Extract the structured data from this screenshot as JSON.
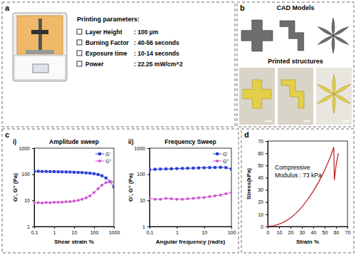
{
  "figure": {
    "panel_labels": [
      "a",
      "b",
      "c",
      "d"
    ],
    "printing": {
      "title": "Printing parameters:",
      "items": [
        {
          "name": "Layer Height",
          "value": ": 100 µm"
        },
        {
          "name": "Burning Factor",
          "value": ": 40-56 seconds"
        },
        {
          "name": "Exposure time",
          "value": ": 10-14 seconds"
        },
        {
          "name": "Power",
          "value": ": 22.25 mW/cm^2"
        }
      ]
    },
    "cad_title": "CAD Models",
    "printed_title": "Printed structures",
    "subpanels": [
      "i)",
      "ii)"
    ]
  },
  "chart_data": [
    {
      "type": "line",
      "title": "Amplitude sweep",
      "x_label": "Shear strain %",
      "y_label": "G', G'' (Pa)",
      "log": true,
      "legend": "upper right",
      "x": [
        0.1,
        0.16,
        0.25,
        0.4,
        0.63,
        1,
        1.6,
        2.5,
        4,
        6.3,
        10,
        16,
        25,
        40,
        63,
        100,
        160,
        250,
        400,
        630,
        1000
      ],
      "series": [
        {
          "name": "G'",
          "color": "#2b3fd6",
          "marker": "square",
          "values": [
            130,
            130,
            128,
            128,
            127,
            126,
            125,
            124,
            123,
            122,
            120,
            118,
            116,
            113,
            110,
            105,
            98,
            88,
            72,
            52,
            33
          ]
        },
        {
          "name": "G''",
          "color": "#d04fd0",
          "marker": "circle",
          "values": [
            8,
            8.2,
            8,
            8.3,
            8.2,
            8.4,
            8.5,
            8.6,
            8.8,
            9,
            9.5,
            10,
            11,
            12.5,
            15,
            20,
            28,
            38,
            48,
            52,
            50
          ]
        }
      ],
      "xlim": [
        0.1,
        1000
      ],
      "xticks": [
        0.1,
        1,
        10,
        100,
        1000
      ],
      "ylim": [
        1,
        1000
      ],
      "yticks": [
        1,
        10,
        100,
        1000
      ]
    },
    {
      "type": "line",
      "title": "Frequency Sweep",
      "x_label": "Angular frequency (rad/s)",
      "y_label": "G', G'' (Pa)",
      "log": true,
      "legend": "upper right",
      "x": [
        0.1,
        0.16,
        0.25,
        0.4,
        0.63,
        1,
        1.6,
        2.5,
        4,
        6.3,
        10,
        16,
        25,
        40,
        63,
        100
      ],
      "series": [
        {
          "name": "G'",
          "color": "#2b3fd6",
          "marker": "square",
          "values": [
            150,
            155,
            158,
            160,
            162,
            165,
            168,
            170,
            172,
            175,
            178,
            180,
            182,
            185,
            180,
            160
          ]
        },
        {
          "name": "G''",
          "color": "#d04fd0",
          "marker": "circle",
          "values": [
            12,
            11,
            11,
            12,
            11.5,
            11,
            11,
            11.5,
            12,
            12.5,
            13,
            14,
            15,
            16,
            18,
            20
          ]
        }
      ],
      "xlim": [
        0.1,
        100
      ],
      "xticks": [
        0.1,
        1,
        10,
        100
      ],
      "ylim": [
        1,
        1000
      ],
      "yticks": [
        1,
        10,
        100,
        1000
      ]
    },
    {
      "type": "line",
      "x_label": "Strain %",
      "y_label": "Stress(kPa)",
      "annotations": [
        "Compressive",
        "Modulus : 73 kPa"
      ],
      "x": [
        0,
        5,
        10,
        15,
        20,
        25,
        30,
        35,
        40,
        45,
        50,
        55,
        58,
        58.5,
        60,
        62
      ],
      "series": [
        {
          "name": "Stress",
          "color": "#c0282d",
          "values": [
            0,
            0.5,
            2,
            4,
            7,
            11,
            16,
            22,
            29,
            37,
            46,
            57,
            65,
            38,
            50,
            60
          ]
        }
      ],
      "xlim": [
        0,
        70
      ],
      "xticks": [
        0,
        10,
        20,
        30,
        40,
        50,
        60,
        70
      ],
      "ylim": [
        0,
        70
      ],
      "yticks": [
        0,
        10,
        20,
        30,
        40,
        50,
        60,
        70
      ]
    }
  ]
}
